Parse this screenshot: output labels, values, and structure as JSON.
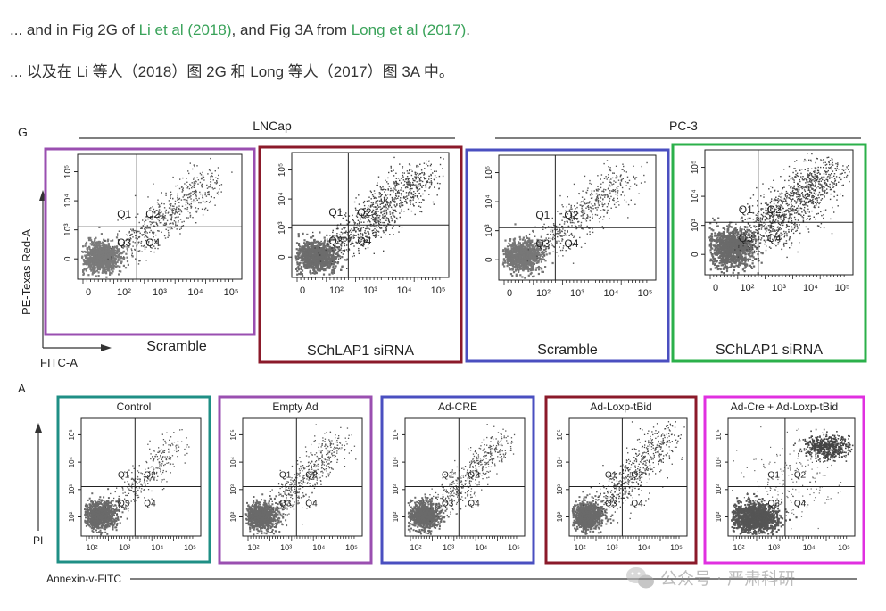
{
  "paragraph_en": {
    "prefix": "... and in Fig 2G of ",
    "link1": "Li et al (2018)",
    "middle": ", and Fig 3A from ",
    "link2": "Long et al (2017)",
    "suffix": "."
  },
  "paragraph_zh": "... 以及在 Li 等人（2018）图 2G 和 Long 等人（2017）图 3A 中。",
  "colors": {
    "link": "#3aa35a",
    "purple": "#9a4fb0",
    "darkred": "#8b1a2a",
    "blue": "#4a4fc0",
    "green": "#2bb04a",
    "teal": "#1f8f85",
    "magenta": "#e030e0"
  },
  "figure_g": {
    "letter": "G",
    "groups": [
      "LNCap",
      "PC-3"
    ],
    "y_axis_label": "PE-Texas Red-A",
    "x_axis_label": "FITC-A",
    "y_ticks": [
      "10⁵",
      "10⁴",
      "10³",
      "0"
    ],
    "x_ticks": [
      "0",
      "10²",
      "10³",
      "10⁴",
      "10⁵"
    ],
    "quadrants": [
      "Q1",
      "Q2",
      "Q3",
      "Q4"
    ],
    "panels": [
      {
        "caption": "Scramble",
        "frame_color": "#9a4fb0"
      },
      {
        "caption": "SChLAP1 siRNA",
        "frame_color": "#8b1a2a"
      },
      {
        "caption": "Scramble",
        "frame_color": "#4a4fc0"
      },
      {
        "caption": "SChLAP1 siRNA",
        "frame_color": "#2bb04a"
      }
    ]
  },
  "figure_a": {
    "letter": "A",
    "y_axis_label": "PI",
    "x_axis_label": "Annexin-v-FITC",
    "y_ticks": [
      "10⁵",
      "10⁴",
      "10³",
      "10²"
    ],
    "x_ticks": [
      "10²",
      "10³",
      "10⁴",
      "10⁵"
    ],
    "quadrants": [
      "Q1",
      "Q2",
      "Q3",
      "Q4"
    ],
    "panels": [
      {
        "title": "Control",
        "frame_color": "#1f8f85"
      },
      {
        "title": "Empty Ad",
        "frame_color": "#9a4fb0"
      },
      {
        "title": "Ad-CRE",
        "frame_color": "#4a4fc0"
      },
      {
        "title": "Ad-Loxp-tBid",
        "frame_color": "#8b1a2a"
      },
      {
        "title": "Ad-Cre + Ad-Loxp-tBid",
        "frame_color": "#e030e0"
      }
    ]
  },
  "watermark": {
    "text": "公众号 · 严肃科研",
    "icon": "wechat-icon"
  }
}
